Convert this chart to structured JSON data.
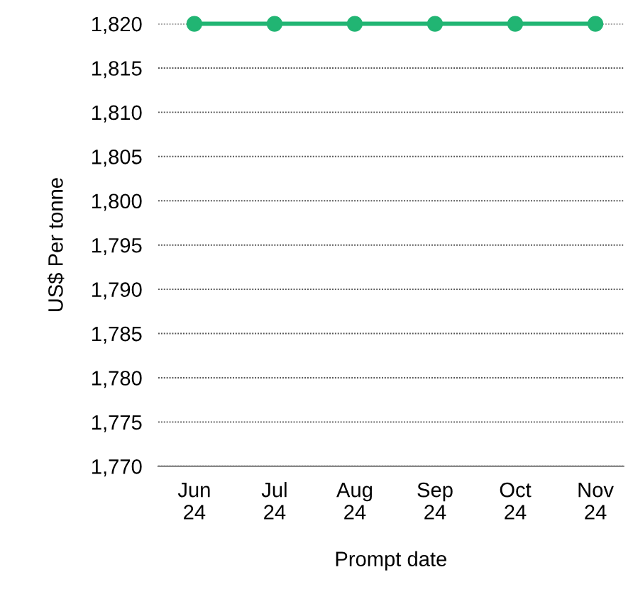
{
  "chart_data": {
    "type": "line",
    "xlabel": "Prompt date",
    "ylabel": "US$ Per tonne",
    "categories": [
      "Jun\n24",
      "Jul\n24",
      "Aug\n24",
      "Sep\n24",
      "Oct\n24",
      "Nov\n24"
    ],
    "series": [
      {
        "color": "#21b573",
        "values": [
          1820,
          1820,
          1820,
          1820,
          1820,
          1820
        ]
      }
    ],
    "ylim": [
      1770,
      1820
    ],
    "yticks": [
      {
        "value": 1770,
        "label": "1,770"
      },
      {
        "value": 1775,
        "label": "1,775"
      },
      {
        "value": 1780,
        "label": "1,780"
      },
      {
        "value": 1785,
        "label": "1,785"
      },
      {
        "value": 1790,
        "label": "1,790"
      },
      {
        "value": 1795,
        "label": "1,795"
      },
      {
        "value": 1800,
        "label": "1,800"
      },
      {
        "value": 1805,
        "label": "1,805"
      },
      {
        "value": 1810,
        "label": "1,810"
      },
      {
        "value": 1815,
        "label": "1,815"
      },
      {
        "value": 1820,
        "label": "1,820"
      }
    ],
    "grid": "y",
    "marker": "circle",
    "line_style": "solid"
  }
}
